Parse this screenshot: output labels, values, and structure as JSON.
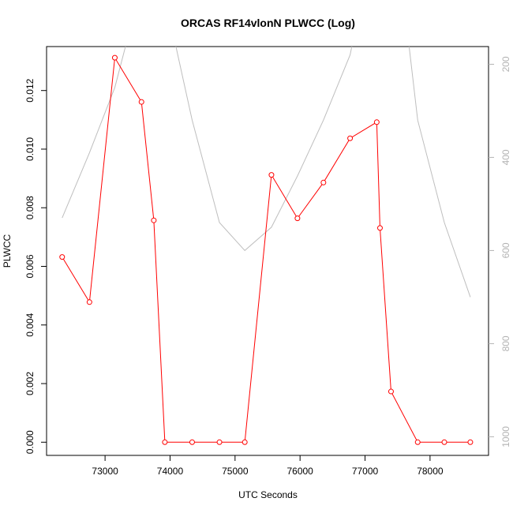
{
  "chart_data": {
    "type": "line",
    "title": "ORCAS RF14vlonN PLWCC (Log)",
    "xlabel": "UTC Seconds",
    "ylabel": "PLWCC",
    "xlim": [
      72100,
      78900
    ],
    "ylim": [
      -0.00045,
      0.0135
    ],
    "x_ticks": [
      "73000",
      "74000",
      "75000",
      "76000",
      "77000",
      "78000"
    ],
    "y_ticks": [
      "0.000",
      "0.002",
      "0.004",
      "0.006",
      "0.008",
      "0.010",
      "0.012"
    ],
    "y2_lim": [
      1040,
      162
    ],
    "y2_ticks": [
      "200",
      "400",
      "600",
      "800",
      "1000"
    ],
    "grid": false,
    "series": [
      {
        "color": "#ff0000",
        "marker": "open-circle",
        "x": [
          72340,
          72760,
          73150,
          73560,
          73750,
          73920,
          74340,
          74760,
          75150,
          75560,
          75960,
          76360,
          76770,
          77180,
          77230,
          77400,
          77810,
          78220,
          78620
        ],
        "y": [
          0.00632,
          0.00478,
          0.01312,
          0.01161,
          0.00757,
          0.0,
          0.0,
          0.0,
          0.0,
          0.00912,
          0.00764,
          0.00886,
          0.01037,
          0.01092,
          0.00731,
          0.00173,
          0.0,
          0.0,
          0.0
        ]
      },
      {
        "color": "#bebebe",
        "axis": "right",
        "x": [
          72340,
          72760,
          73150,
          73560,
          73740,
          74340,
          74760,
          75150,
          75560,
          75960,
          76360,
          76770,
          77180,
          77560,
          77810,
          78220,
          78620
        ],
        "y": [
          530,
          390,
          250,
          30,
          -60,
          320,
          540,
          600,
          550,
          440,
          320,
          180,
          -100,
          20,
          320,
          540,
          700
        ]
      }
    ]
  }
}
